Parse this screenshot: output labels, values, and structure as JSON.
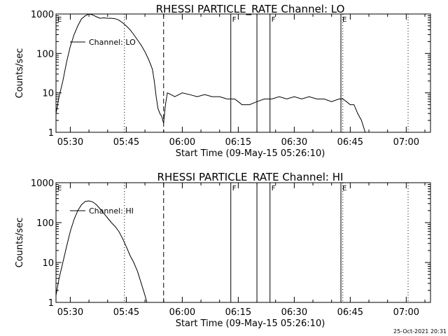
{
  "footer_stamp": "25-Oct-2021 20:31",
  "chart_data": [
    {
      "type": "line",
      "title": "RHESSI PARTICLE_RATE Channel: LO",
      "xlabel": "Start Time (09-May-15 05:26:10)",
      "ylabel": "Counts/sec",
      "y_scale": "log",
      "ylim": [
        1,
        1000
      ],
      "yticks": [
        1,
        10,
        100,
        1000
      ],
      "ytick_labels": [
        "1",
        "10",
        "100",
        "1000"
      ],
      "xlim": [
        "05:26:10",
        "07:06:30"
      ],
      "xtick_labels": [
        "05:30",
        "05:45",
        "06:00",
        "06:15",
        "06:30",
        "06:45",
        "07:00"
      ],
      "legend": "Channel: LO",
      "legend_position": "top-left",
      "series": [
        {
          "name": "Channel: LO",
          "x": [
            "05:26:10",
            "05:27:00",
            "05:28:00",
            "05:29:00",
            "05:30:00",
            "05:31:00",
            "05:32:00",
            "05:33:00",
            "05:34:00",
            "05:35:00",
            "05:36:00",
            "05:37:00",
            "05:38:00",
            "05:39:00",
            "05:40:00",
            "05:41:00",
            "05:42:00",
            "05:43:00",
            "05:44:00",
            "05:45:00",
            "05:46:00",
            "05:47:00",
            "05:48:00",
            "05:49:00",
            "05:50:00",
            "05:51:00",
            "05:52:00",
            "05:52:30",
            "05:53:00",
            "05:53:30",
            "05:54:00",
            "05:54:30",
            "05:55:00",
            "05:55:30",
            "05:56:00",
            "05:57:00",
            "05:58:00",
            "06:00:00",
            "06:02:00",
            "06:04:00",
            "06:06:00",
            "06:08:00",
            "06:10:00",
            "06:12:00",
            "06:14:00",
            "06:15:00",
            "06:16:00",
            "06:18:00",
            "06:20:00",
            "06:22:00",
            "06:24:00",
            "06:26:00",
            "06:28:00",
            "06:30:00",
            "06:32:00",
            "06:34:00",
            "06:36:00",
            "06:38:00",
            "06:40:00",
            "06:42:00",
            "06:43:00",
            "06:44:00",
            "06:45:00",
            "06:46:00",
            "06:47:00",
            "06:48:00",
            "06:49:00",
            "06:50:00",
            "06:51:00",
            "06:52:00",
            "06:53:00",
            "06:54:00",
            "06:55:00",
            "06:56:00",
            "06:57:00",
            "06:58:00",
            "06:59:00",
            "07:00:00",
            "07:01:00"
          ],
          "y": [
            3,
            8,
            20,
            60,
            150,
            300,
            500,
            750,
            900,
            1000,
            950,
            850,
            780,
            800,
            780,
            780,
            760,
            700,
            600,
            500,
            400,
            300,
            220,
            160,
            110,
            70,
            40,
            20,
            8,
            4,
            3,
            2.5,
            1.7,
            5,
            10,
            9,
            8,
            10,
            9,
            8,
            9,
            8,
            8,
            7,
            7,
            6,
            5,
            5,
            6,
            7,
            7,
            8,
            7,
            8,
            7,
            8,
            7,
            7,
            6,
            7,
            7,
            6,
            5,
            5,
            3,
            2,
            1,
            1,
            1,
            1,
            1,
            1,
            1,
            1,
            1,
            1,
            1,
            1,
            1
          ]
        }
      ],
      "annotations": [
        {
          "type": "dotted_vline",
          "x": "05:44:30"
        },
        {
          "type": "dashed_vline",
          "x": "05:55:00"
        },
        {
          "type": "solid_vline",
          "x": "06:13:00",
          "label": "F"
        },
        {
          "type": "solid_vline",
          "x": "06:20:00"
        },
        {
          "type": "solid_vline",
          "x": "06:23:30",
          "label": "F"
        },
        {
          "type": "solid_vline",
          "x": "06:42:30",
          "label": "E"
        },
        {
          "type": "dotted_vline",
          "x": "06:43:00"
        },
        {
          "type": "dotted_vline",
          "x": "07:00:30"
        },
        {
          "type": "corner_label",
          "x": "05:26:10",
          "label": "E"
        }
      ]
    },
    {
      "type": "line",
      "title": "RHESSI PARTICLE_RATE Channel: HI",
      "xlabel": "Start Time (09-May-15 05:26:10)",
      "ylabel": "Counts/sec",
      "y_scale": "log",
      "ylim": [
        1,
        1000
      ],
      "yticks": [
        1,
        10,
        100,
        1000
      ],
      "ytick_labels": [
        "1",
        "10",
        "100",
        "1000"
      ],
      "xlim": [
        "05:26:10",
        "07:06:30"
      ],
      "xtick_labels": [
        "05:30",
        "05:45",
        "06:00",
        "06:15",
        "06:30",
        "06:45",
        "07:00"
      ],
      "legend": "Channel: HI",
      "legend_position": "top-left",
      "series": [
        {
          "name": "Channel: HI",
          "x": [
            "05:26:10",
            "05:27:00",
            "05:28:00",
            "05:29:00",
            "05:30:00",
            "05:31:00",
            "05:32:00",
            "05:33:00",
            "05:34:00",
            "05:35:00",
            "05:36:00",
            "05:37:00",
            "05:38:00",
            "05:39:00",
            "05:40:00",
            "05:41:00",
            "05:42:00",
            "05:43:00",
            "05:44:00",
            "05:45:00",
            "05:46:00",
            "05:47:00",
            "05:48:00",
            "05:49:00",
            "05:50:00",
            "05:50:30"
          ],
          "y": [
            1.5,
            4,
            10,
            25,
            60,
            120,
            200,
            280,
            340,
            350,
            330,
            280,
            220,
            170,
            130,
            100,
            80,
            60,
            40,
            25,
            15,
            10,
            6,
            3,
            1.5,
            1
          ]
        }
      ],
      "annotations": [
        {
          "type": "dotted_vline",
          "x": "05:44:30"
        },
        {
          "type": "dashed_vline",
          "x": "05:55:00"
        },
        {
          "type": "solid_vline",
          "x": "06:13:00",
          "label": "F"
        },
        {
          "type": "solid_vline",
          "x": "06:20:00"
        },
        {
          "type": "solid_vline",
          "x": "06:23:30",
          "label": "F"
        },
        {
          "type": "solid_vline",
          "x": "06:42:30",
          "label": "E"
        },
        {
          "type": "dotted_vline",
          "x": "06:43:00"
        },
        {
          "type": "dotted_vline",
          "x": "07:00:30"
        },
        {
          "type": "corner_label",
          "x": "05:26:10",
          "label": "E"
        }
      ]
    }
  ]
}
